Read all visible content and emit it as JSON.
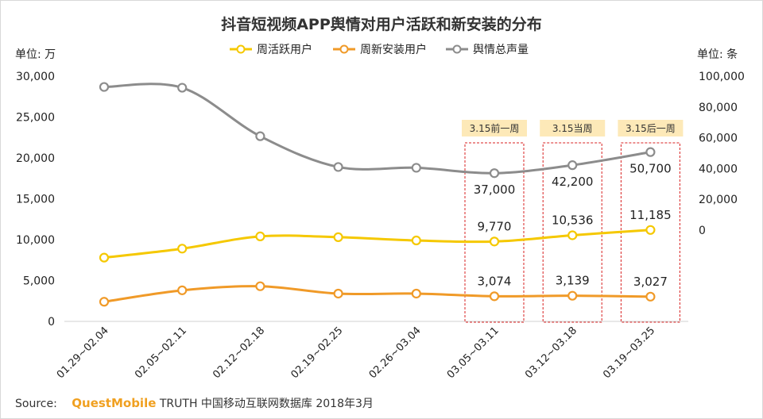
{
  "chart_data": {
    "type": "line",
    "title": "抖音短视频APP舆情对用户活跃和新安装的分布",
    "unit_left": "单位: 万",
    "unit_right": "单位: 条",
    "categories": [
      "01.29~02.04",
      "02.05~02.11",
      "02.12~02.18",
      "02.19~02.25",
      "02.26~03.04",
      "03.05~03.11",
      "03.12~03.18",
      "03.19~03.25"
    ],
    "y_left": {
      "ylim": [
        0,
        30000
      ],
      "ticks": [
        "0",
        "5,000",
        "10,000",
        "15,000",
        "20,000",
        "25,000",
        "30,000"
      ]
    },
    "y_right": {
      "ylim": [
        -50000,
        100000
      ],
      "ticks": [
        "0",
        "20,000",
        "40,000",
        "60,000",
        "80,000",
        "100,000"
      ]
    },
    "legend_position": "top-center",
    "grid": false,
    "series": [
      {
        "name": "周活跃用户",
        "axis": "left",
        "color": "#f5c800",
        "values": [
          7800,
          8900,
          10400,
          10300,
          9900,
          9770,
          10536,
          11185
        ],
        "data_labels": [
          "",
          "",
          "",
          "",
          "",
          "9,770",
          "10,536",
          "11,185"
        ]
      },
      {
        "name": "周新安装用户",
        "axis": "left",
        "color": "#f09a28",
        "values": [
          2400,
          3800,
          4300,
          3400,
          3400,
          3074,
          3139,
          3027
        ],
        "data_labels": [
          "",
          "",
          "",
          "",
          "",
          "3,074",
          "3,139",
          "3,027"
        ]
      },
      {
        "name": "舆情总声量",
        "axis": "right",
        "color": "#8c8c8c",
        "values": [
          93000,
          92500,
          61000,
          41000,
          40500,
          37000,
          42200,
          50700
        ],
        "data_labels": [
          "",
          "",
          "",
          "",
          "",
          "37,000",
          "42,200",
          "50,700"
        ]
      }
    ],
    "annotations": [
      {
        "label": "3.15前一周",
        "category_index": 5
      },
      {
        "label": "3.15当周",
        "category_index": 6
      },
      {
        "label": "3.15后一周",
        "category_index": 7
      }
    ]
  },
  "source": {
    "prefix": "Source:",
    "brand": "QuestMobile",
    "text": "TRUTH 中国移动互联网数据库 2018年3月"
  }
}
